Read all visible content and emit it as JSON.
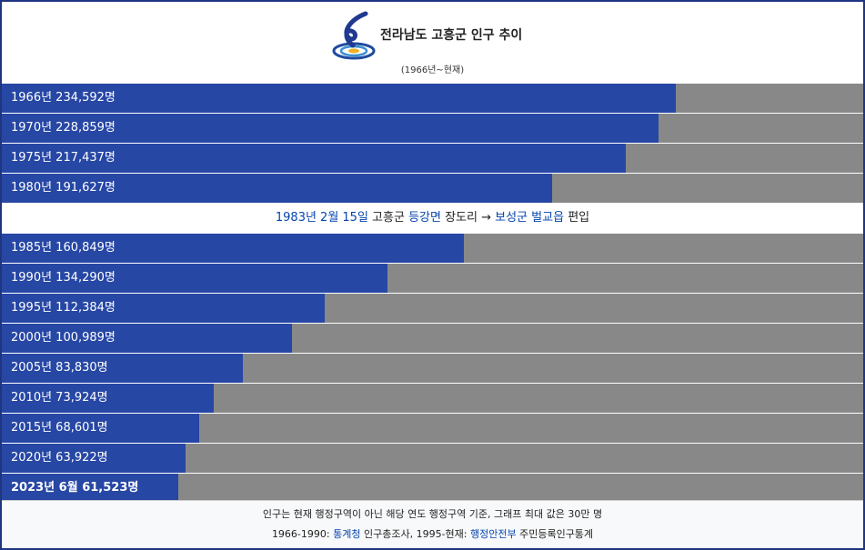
{
  "chart_data": {
    "type": "bar",
    "orientation": "horizontal",
    "title": "전라남도 고흥군 인구 추이",
    "subtitle": "(1966년~현재)",
    "xlim": [
      0,
      300000
    ],
    "color": "#2747a5",
    "track_color": "#888888",
    "link_color": "#0645ad",
    "sections": [
      {
        "values": [
          234592,
          228859,
          217437,
          191627
        ],
        "value_labels": [
          "1966년 234,592명",
          "1970년 228,859명",
          "1975년 217,437명",
          "1980년 191,627명"
        ]
      },
      {
        "note": [
          {
            "text": "1983년 2월 15일",
            "link": true
          },
          {
            "text": " 고흥군 ",
            "link": false
          },
          {
            "text": "등강면",
            "link": true
          },
          {
            "text": " 장도리 → ",
            "link": false
          },
          {
            "text": "보성군",
            "link": true
          },
          {
            "text": " ",
            "link": false
          },
          {
            "text": "벌교읍",
            "link": true
          },
          {
            "text": " 편입",
            "link": false
          }
        ]
      },
      {
        "values": [
          160849,
          134290,
          112384,
          100989,
          83830,
          73924,
          68601,
          63922,
          61523
        ],
        "value_labels": [
          "1985년 160,849명",
          "1990년 134,290명",
          "1995년 112,384명",
          "2000년 100,989명",
          "2005년 83,830명",
          "2010년 73,924명",
          "2015년 68,601명",
          "2020년 63,922명",
          "2023년 6월 61,523명"
        ]
      }
    ],
    "footer": [
      [
        {
          "text": "인구는 현재 행정구역이 아닌 해당 연도 행정구역 기준, 그래프 최대 값은 30만 명",
          "link": false
        }
      ],
      [
        {
          "text": "1966-1990: ",
          "link": false
        },
        {
          "text": "통계청",
          "link": true
        },
        {
          "text": " 인구총조사, 1995-현재: ",
          "link": false
        },
        {
          "text": "행정안전부",
          "link": true
        },
        {
          "text": " 주민등록인구통계",
          "link": false
        }
      ]
    ]
  }
}
